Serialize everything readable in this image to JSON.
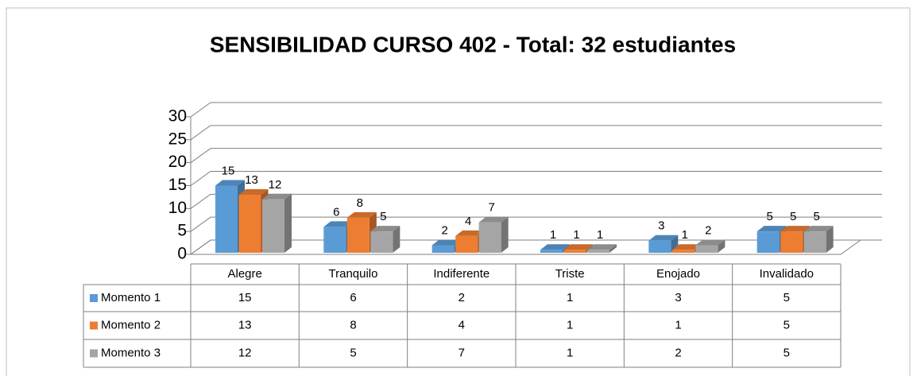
{
  "chart_data": {
    "type": "bar3d",
    "title": "SENSIBILIDAD CURSO 402 - Total: 32 estudiantes",
    "categories": [
      "Alegre",
      "Tranquilo",
      "Indiferente",
      "Triste",
      "Enojado",
      "Invalidado"
    ],
    "series": [
      {
        "name": "Momento 1",
        "color": "#5b9bd5",
        "values": [
          15,
          6,
          2,
          1,
          3,
          5
        ]
      },
      {
        "name": "Momento 2",
        "color": "#ed7d31",
        "values": [
          13,
          8,
          4,
          1,
          1,
          5
        ]
      },
      {
        "name": "Momento 3",
        "color": "#a5a5a5",
        "values": [
          12,
          5,
          7,
          1,
          2,
          5
        ]
      }
    ],
    "ylim": [
      0,
      30
    ],
    "yticks": [
      0,
      5,
      10,
      15,
      20,
      25,
      30
    ],
    "grid": true,
    "data_table": true
  }
}
